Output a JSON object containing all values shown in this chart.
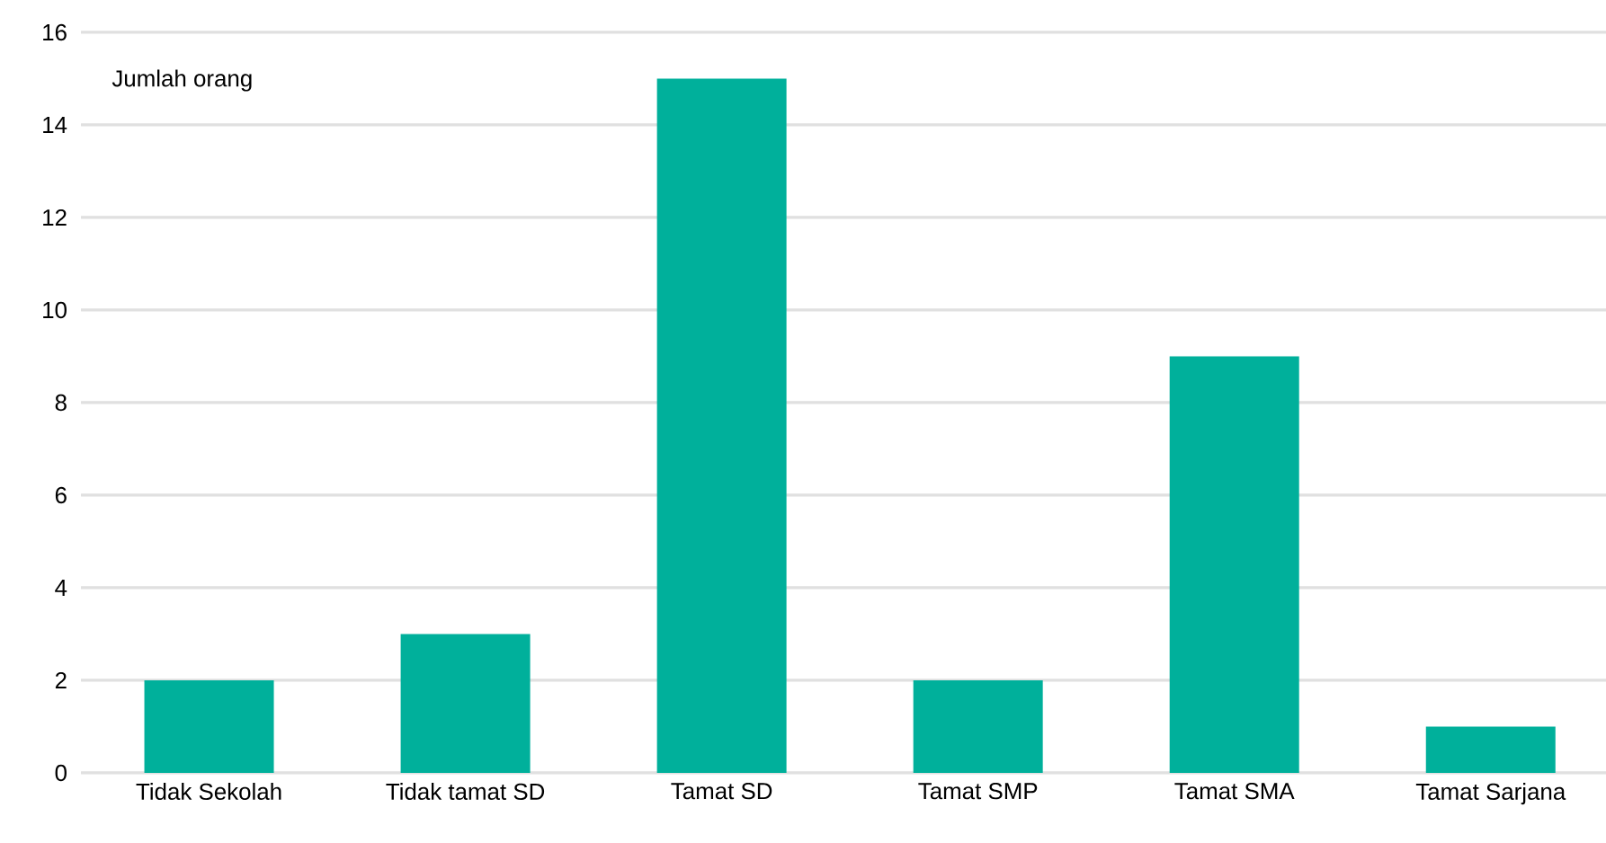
{
  "chart_data": {
    "type": "bar",
    "ylabel": "Jumlah orang",
    "categories": [
      "Tidak Sekolah",
      "Tidak tamat SD",
      "Tamat SD",
      "Tamat SMP",
      "Tamat SMA",
      "Tamat Sarjana"
    ],
    "values": [
      2,
      3,
      15,
      2,
      9,
      1
    ],
    "color": "#00b09b",
    "ylim": [
      0,
      16
    ],
    "yticks": [
      0,
      2,
      4,
      6,
      8,
      10,
      12,
      14,
      16
    ],
    "grid": "y"
  }
}
